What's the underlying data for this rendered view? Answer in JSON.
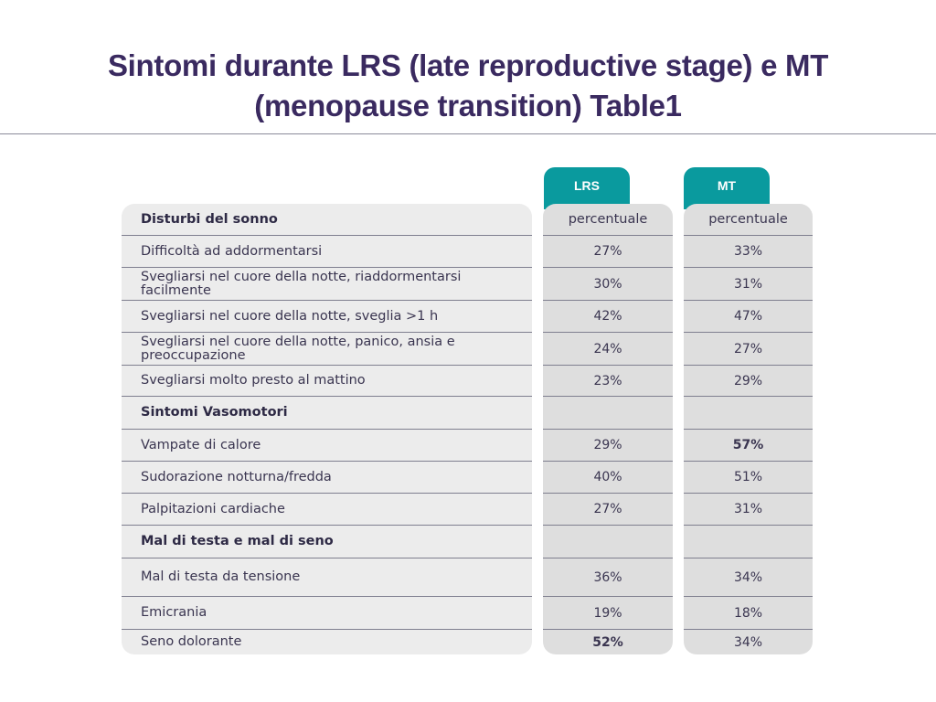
{
  "title_line1": "Sintomi durante LRS (late reproductive stage) e MT",
  "title_line2": "(menopause transition) Table1",
  "columns": {
    "lrs": {
      "label": "LRS",
      "sub": "percentuale"
    },
    "mt": {
      "label": "MT",
      "sub": "percentuale"
    }
  },
  "rows": [
    {
      "label": "Disturbi del sonno",
      "lrs": "",
      "mt": "",
      "header": true
    },
    {
      "label": "Difficoltà ad addormentarsi",
      "lrs": "27%",
      "mt": "33%"
    },
    {
      "label": "Svegliarsi nel cuore della notte, riaddormentarsi facilmente",
      "lrs": "30%",
      "mt": "31%"
    },
    {
      "label": "Svegliarsi nel cuore della notte, sveglia >1 h",
      "lrs": "42%",
      "mt": "47%"
    },
    {
      "label": "Svegliarsi nel cuore della notte, panico, ansia e preoccupazione",
      "lrs": "24%",
      "mt": "27%"
    },
    {
      "label": "Svegliarsi molto presto al mattino",
      "lrs": "23%",
      "mt": "29%"
    },
    {
      "label": "Sintomi Vasomotori",
      "lrs": "",
      "mt": "",
      "header": true
    },
    {
      "label": "Vampate di calore",
      "lrs": "29%",
      "mt": "57%",
      "mt_bold": true
    },
    {
      "label": "Sudorazione notturna/fredda",
      "lrs": "40%",
      "mt": "51%"
    },
    {
      "label": "Palpitazioni cardiache",
      "lrs": "27%",
      "mt": "31%"
    },
    {
      "label": "Mal di testa e mal di seno",
      "lrs": "",
      "mt": "",
      "header": true
    },
    {
      "label": "Mal di testa da tensione",
      "lrs": "36%",
      "mt": "34%"
    },
    {
      "label": "Emicrania",
      "lrs": "19%",
      "mt": "18%"
    },
    {
      "label": "Seno dolorante",
      "lrs": "52%",
      "mt": "34%",
      "lrs_bold": true
    }
  ]
}
